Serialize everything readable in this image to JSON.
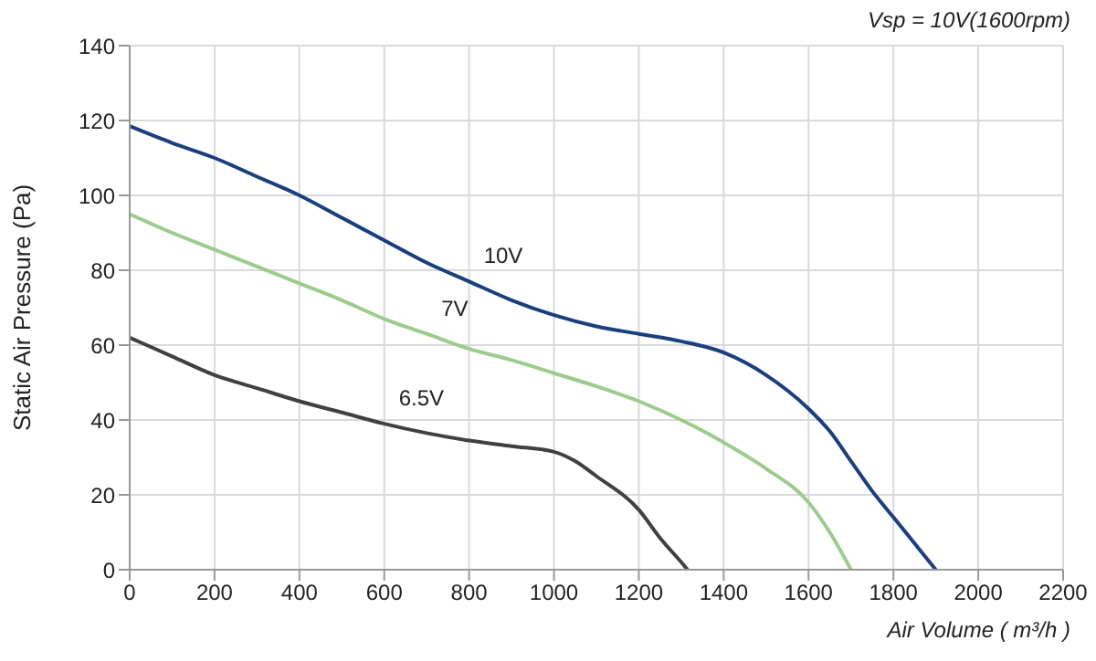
{
  "chart_data": {
    "type": "line",
    "xlabel": "Air Volume ( m³/h )",
    "ylabel": "Static Air Pressure  (Pa)",
    "annotations": [
      "Vsp = 10V(1600rpm)"
    ],
    "xlim": [
      0,
      2200
    ],
    "xticks": [
      0,
      200,
      400,
      600,
      800,
      1000,
      1200,
      1400,
      1600,
      1800,
      2000,
      2200
    ],
    "ylim": [
      0,
      140
    ],
    "yticks": [
      0,
      20,
      40,
      60,
      80,
      100,
      120,
      140
    ],
    "grid": true,
    "line_style": "solid",
    "series": [
      {
        "name": "10V",
        "color": "#1a3f7f",
        "x": [
          0,
          100,
          200,
          300,
          400,
          500,
          600,
          700,
          800,
          900,
          1000,
          1100,
          1200,
          1300,
          1400,
          1500,
          1600,
          1650,
          1700,
          1750,
          1800,
          1850,
          1900
        ],
        "values": [
          118.5,
          114,
          110,
          105,
          100,
          94,
          88,
          82,
          77,
          72,
          68,
          65,
          63,
          61,
          58,
          52,
          43,
          37,
          29,
          21,
          14,
          7,
          0
        ]
      },
      {
        "name": "7V",
        "color": "#9ccc8c",
        "x": [
          0,
          100,
          200,
          300,
          400,
          500,
          600,
          700,
          800,
          900,
          1000,
          1100,
          1200,
          1300,
          1400,
          1500,
          1600,
          1650,
          1700
        ],
        "values": [
          95,
          90,
          85.5,
          81,
          76.5,
          72,
          67,
          63,
          59,
          56,
          52.5,
          49,
          45,
          40,
          34,
          27,
          18,
          10,
          0
        ]
      },
      {
        "name": "6.5V",
        "color": "#404040",
        "x": [
          0,
          100,
          200,
          300,
          400,
          500,
          600,
          700,
          800,
          900,
          1000,
          1050,
          1100,
          1200,
          1250,
          1300,
          1315
        ],
        "values": [
          62,
          57,
          52,
          48.5,
          45,
          42,
          39,
          36.5,
          34.5,
          33,
          31.5,
          29,
          25,
          16,
          8.5,
          2,
          0
        ]
      }
    ]
  }
}
